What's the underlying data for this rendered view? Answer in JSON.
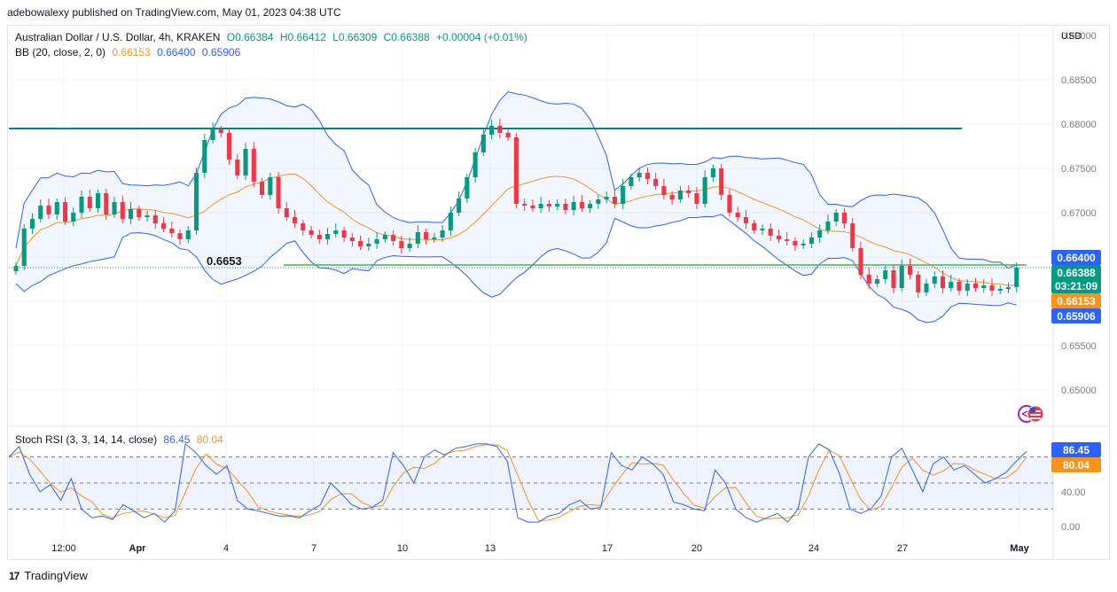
{
  "publisher_line": "adebowalexy published on TradingView.com, May 01, 2023 04:38 UTC",
  "footer_brand": "TradingView",
  "legend": {
    "symbol": "Australian Dollar / U.S. Dollar, 4h, KRAKEN",
    "open": "O0.66384",
    "high": "H0.66412",
    "low": "L0.66309",
    "close": "C0.66388",
    "change": "+0.00004 (+0.01%)",
    "bb_label": "BB (20, close, 2, 0)",
    "bb_basis": "0.66153",
    "bb_upper": "0.66400",
    "bb_lower": "0.65906",
    "rsi_label": "Stoch RSI (3, 3, 14, 14, close)",
    "rsi_k": "86.45",
    "rsi_d": "80.04"
  },
  "colors": {
    "bull": "#089981",
    "bear": "#f23645",
    "bb_band": "#2962ff",
    "bb_basis": "#f7931a",
    "resistance": "#00897b",
    "support": "#4caf50",
    "k_line": "#2962ff",
    "d_line": "#f7931a"
  },
  "chart_data": [
    {
      "type": "candlestick",
      "title": "Australian Dollar / U.S. Dollar, 4h, KRAKEN",
      "ylabel": "USD",
      "ylim": [
        0.6462,
        0.691
      ],
      "y_ticks": [
        "0.65000",
        "0.65500",
        "0.66000",
        "0.66500",
        "0.67000",
        "0.67500",
        "0.68000",
        "0.68500",
        "0.69000"
      ],
      "x_ticks": [
        "12:00",
        "Apr",
        "4",
        "7",
        "10",
        "13",
        "17",
        "20",
        "24",
        "27",
        "May"
      ],
      "price_labels": {
        "upper": "0.66400",
        "close": "0.66388",
        "countdown": "03:21:09",
        "basis": "0.66153",
        "lower": "0.65906"
      },
      "horizontal_lines": [
        {
          "name": "resistance",
          "value": 0.6795
        },
        {
          "name": "support",
          "value": 0.6641
        }
      ],
      "annotation": "0.6653",
      "close_path": [
        0.664,
        0.6682,
        0.6693,
        0.6708,
        0.6698,
        0.6712,
        0.669,
        0.67,
        0.6718,
        0.6705,
        0.6722,
        0.6698,
        0.6712,
        0.6693,
        0.6704,
        0.6695,
        0.6697,
        0.6688,
        0.6682,
        0.6677,
        0.667,
        0.668,
        0.6745,
        0.6782,
        0.6794,
        0.679,
        0.676,
        0.6742,
        0.6772,
        0.6735,
        0.672,
        0.674,
        0.6705,
        0.6695,
        0.6688,
        0.668,
        0.6675,
        0.667,
        0.6676,
        0.668,
        0.6672,
        0.6668,
        0.6662,
        0.6665,
        0.667,
        0.6675,
        0.6668,
        0.666,
        0.6665,
        0.6678,
        0.667,
        0.6672,
        0.668,
        0.67,
        0.6716,
        0.674,
        0.6768,
        0.6788,
        0.6798,
        0.679,
        0.6785,
        0.671,
        0.6708,
        0.6705,
        0.671,
        0.6707,
        0.671,
        0.6703,
        0.6712,
        0.6705,
        0.671,
        0.6715,
        0.6718,
        0.671,
        0.673,
        0.674,
        0.6745,
        0.6738,
        0.673,
        0.672,
        0.6715,
        0.6725,
        0.6722,
        0.671,
        0.674,
        0.675,
        0.672,
        0.67,
        0.6695,
        0.6688,
        0.668,
        0.6682,
        0.6674,
        0.667,
        0.6668,
        0.6663,
        0.6665,
        0.6672,
        0.668,
        0.669,
        0.67,
        0.6688,
        0.666,
        0.663,
        0.662,
        0.6625,
        0.6635,
        0.6615,
        0.664,
        0.663,
        0.661,
        0.662,
        0.6628,
        0.6615,
        0.6622,
        0.6612,
        0.662,
        0.6615,
        0.6618,
        0.6612,
        0.6614,
        0.6616,
        0.6638
      ]
    },
    {
      "type": "line",
      "title": "Stoch RSI (3, 3, 14, 14, close)",
      "ylim": [
        0,
        100
      ],
      "y_ticks": [
        "0.00",
        "40.00"
      ],
      "band": [
        20,
        80
      ],
      "last_values": {
        "k": 86.45,
        "d": 80.04
      },
      "k_path": [
        80,
        92,
        60,
        40,
        48,
        30,
        55,
        20,
        10,
        12,
        8,
        25,
        18,
        10,
        15,
        5,
        18,
        95,
        85,
        70,
        60,
        70,
        30,
        20,
        18,
        15,
        12,
        12,
        10,
        18,
        25,
        50,
        38,
        25,
        20,
        22,
        30,
        85,
        70,
        50,
        80,
        88,
        82,
        90,
        92,
        95,
        95,
        92,
        75,
        10,
        5,
        5,
        12,
        15,
        25,
        30,
        20,
        22,
        85,
        70,
        65,
        80,
        72,
        60,
        28,
        25,
        20,
        18,
        65,
        50,
        20,
        10,
        5,
        10,
        15,
        5,
        20,
        80,
        95,
        88,
        60,
        20,
        15,
        20,
        35,
        80,
        90,
        65,
        40,
        72,
        80,
        65,
        70,
        60,
        50,
        55,
        62,
        75,
        86.45
      ]
    }
  ]
}
